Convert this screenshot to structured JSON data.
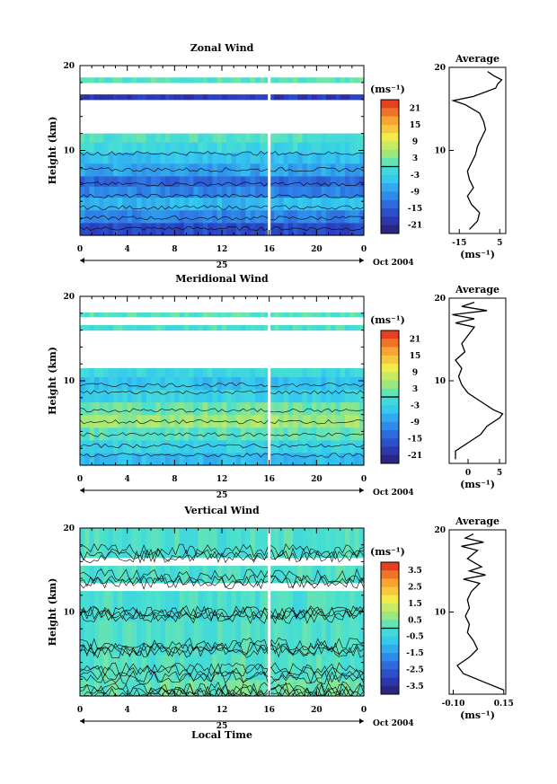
{
  "page": {
    "xlabel": "Local Time"
  },
  "chart_data": [
    {
      "type": "heatmap",
      "title": "Zonal Wind",
      "ylabel": "Height (km)",
      "ylim": [
        0,
        20
      ],
      "yticks": [
        "20",
        "10"
      ],
      "xticks": [
        "0",
        "4",
        "8",
        "12",
        "16",
        "20",
        "0"
      ],
      "xlim": [
        0,
        24
      ],
      "date_label": "25",
      "date_suffix": "Oct 2004",
      "colorbar": {
        "unit": "(ms⁻¹)",
        "ticks": [
          "21",
          "15",
          "9",
          "3",
          "-3",
          "-9",
          "-15",
          "-21"
        ],
        "range": [
          -24,
          24
        ]
      },
      "data_gap_hour": 16,
      "layers": [
        {
          "from": 0.0,
          "to": 1.5,
          "value": -17
        },
        {
          "from": 1.5,
          "to": 3.0,
          "value": -11
        },
        {
          "from": 3.0,
          "to": 4.5,
          "value": -6
        },
        {
          "from": 4.5,
          "to": 5.8,
          "value": -11
        },
        {
          "from": 5.8,
          "to": 7.0,
          "value": -14
        },
        {
          "from": 7.0,
          "to": 8.5,
          "value": -8
        },
        {
          "from": 8.5,
          "to": 9.8,
          "value": -5
        },
        {
          "from": 9.8,
          "to": 11.0,
          "value": -2
        },
        {
          "from": 11.0,
          "to": 12.0,
          "value": 0
        },
        {
          "from": 16.0,
          "to": 16.6,
          "value": -19
        },
        {
          "from": 18.0,
          "to": 18.6,
          "value": 1
        }
      ],
      "average": {
        "title": "Average",
        "xticks": [
          "-15",
          "5"
        ],
        "xlim": [
          -20,
          8
        ],
        "yticks": [
          "20",
          "10"
        ],
        "unit": "(ms⁻¹)",
        "heights": [
          0.5,
          1.5,
          2.5,
          3.5,
          4.5,
          5.5,
          6.5,
          7.5,
          8.5,
          9.5,
          10.5,
          11.5,
          12.5,
          13.5,
          14.5,
          15.5,
          16.0,
          16.5,
          17.5,
          18.0,
          18.5,
          19.0,
          19.5
        ],
        "values": [
          -10,
          -6,
          -5,
          -9,
          -11,
          -8,
          -10,
          -11,
          -9,
          -7,
          -6,
          -4,
          -2,
          -3,
          -5,
          -12,
          -18,
          -8,
          3,
          4,
          6,
          2,
          -1
        ]
      }
    },
    {
      "type": "heatmap",
      "title": "Meridional Wind",
      "ylabel": "Height (km)",
      "ylim": [
        0,
        20
      ],
      "yticks": [
        "20",
        "10"
      ],
      "xticks": [
        "0",
        "4",
        "8",
        "12",
        "16",
        "20",
        "0"
      ],
      "xlim": [
        0,
        24
      ],
      "date_label": "25",
      "date_suffix": "Oct 2004",
      "colorbar": {
        "unit": "(ms⁻¹)",
        "ticks": [
          "21",
          "15",
          "9",
          "3",
          "-3",
          "-9",
          "-15",
          "-21"
        ],
        "range": [
          -24,
          24
        ]
      },
      "data_gap_hour": 16,
      "layers": [
        {
          "from": 0.0,
          "to": 1.5,
          "value": -6
        },
        {
          "from": 1.5,
          "to": 3.0,
          "value": -3
        },
        {
          "from": 3.0,
          "to": 4.5,
          "value": 1
        },
        {
          "from": 4.5,
          "to": 6.0,
          "value": 5
        },
        {
          "from": 6.0,
          "to": 7.5,
          "value": 2
        },
        {
          "from": 7.5,
          "to": 9.0,
          "value": -3
        },
        {
          "from": 9.0,
          "to": 10.5,
          "value": -5
        },
        {
          "from": 10.5,
          "to": 11.5,
          "value": -2
        },
        {
          "from": 16.0,
          "to": 16.6,
          "value": 0
        },
        {
          "from": 17.6,
          "to": 18.1,
          "value": 1
        }
      ],
      "average": {
        "title": "Average",
        "xticks": [
          "0",
          "5"
        ],
        "xlim": [
          -3,
          6
        ],
        "yticks": [
          "20",
          "10"
        ],
        "unit": "(ms⁻¹)",
        "heights": [
          0.5,
          1.5,
          2.5,
          3.5,
          4.5,
          5.5,
          6.0,
          6.5,
          7.5,
          8.5,
          9.5,
          10.5,
          11.5,
          12.5,
          13.5,
          14.5,
          15.5,
          16.5,
          17.0,
          17.5,
          18.0,
          18.5,
          19.0,
          19.5
        ],
        "values": [
          -2,
          -2,
          0,
          2,
          3,
          5,
          5.5,
          4,
          2,
          0,
          -1,
          -1.5,
          -1,
          -2,
          -0.5,
          -1,
          0,
          1,
          -2,
          1,
          -2.5,
          3,
          -1,
          1
        ]
      }
    },
    {
      "type": "heatmap",
      "title": "Vertical Wind",
      "ylabel": "Height (km)",
      "ylim": [
        0,
        20
      ],
      "yticks": [
        "20",
        "10"
      ],
      "xticks": [
        "0",
        "4",
        "8",
        "12",
        "16",
        "20",
        "0"
      ],
      "xlim": [
        0,
        24
      ],
      "date_label": "25",
      "date_suffix": "Oct 2004",
      "colorbar": {
        "unit": "(ms⁻¹)",
        "ticks": [
          "3.5",
          "2.5",
          "1.5",
          "0.5",
          "-0.5",
          "-1.5",
          "-2.5",
          "-3.5"
        ],
        "range": [
          -4,
          4
        ]
      },
      "data_gap_hour": 16,
      "layers": [
        {
          "from": 0.0,
          "to": 2.0,
          "value": 0.3
        },
        {
          "from": 2.0,
          "to": 5.0,
          "value": 0.1
        },
        {
          "from": 5.0,
          "to": 9.0,
          "value": 0.0
        },
        {
          "from": 9.0,
          "to": 12.5,
          "value": -0.1
        },
        {
          "from": 13.5,
          "to": 15.5,
          "value": 0.0
        },
        {
          "from": 16.5,
          "to": 20.0,
          "value": 0.0
        }
      ],
      "average": {
        "title": "Average",
        "xticks": [
          "-0.10",
          "0.15"
        ],
        "xlim": [
          -0.12,
          0.16
        ],
        "yticks": [
          "20",
          "10"
        ],
        "unit": "(ms⁻¹)",
        "heights": [
          0.5,
          1.5,
          2.5,
          3.5,
          4.5,
          5.5,
          6.5,
          7.5,
          8.5,
          9.5,
          10.5,
          11.5,
          12.5,
          13.5,
          14.0,
          14.5,
          15.0,
          15.5,
          16.5,
          17.5,
          18.0,
          18.5,
          19.0,
          19.5
        ],
        "values": [
          0.15,
          0.05,
          -0.05,
          -0.08,
          -0.02,
          0.02,
          0.0,
          -0.03,
          -0.02,
          -0.04,
          -0.02,
          -0.03,
          -0.01,
          0.03,
          -0.05,
          0.06,
          -0.02,
          0.04,
          -0.03,
          0.02,
          -0.06,
          0.05,
          -0.04,
          0.0
        ]
      }
    }
  ]
}
